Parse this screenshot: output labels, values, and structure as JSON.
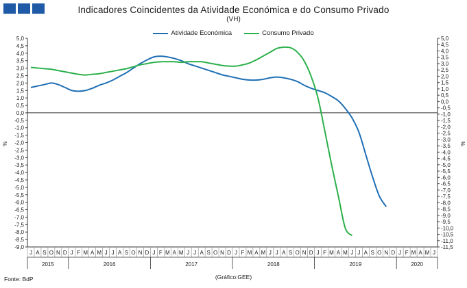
{
  "header": {
    "title": "Indicadores Coincidentes da Atividade Económica e do Consumo Privado",
    "subtitle": "(VH)"
  },
  "footer": {
    "source": "Fonte: BdP",
    "credit": "(Gráfico:GEE)"
  },
  "chart_data": {
    "type": "line",
    "title": "Indicadores Coincidentes da Atividade Económica e do Consumo Privado",
    "subtitle": "(VH)",
    "ylabel_left": "%",
    "ylabel_right": "%",
    "ylim_left": [
      -9.0,
      5.0
    ],
    "ylim_right": [
      -11.5,
      5.0
    ],
    "yticks_left": [
      "5,0",
      "4,5",
      "4,0",
      "3,5",
      "3,0",
      "2,5",
      "2,0",
      "1,5",
      "1,0",
      "0,5",
      "0,0",
      "-0,5",
      "-1,0",
      "-1,5",
      "-2,0",
      "-2,5",
      "-3,0",
      "-3,5",
      "-4,0",
      "-4,5",
      "-5,0",
      "-5,5",
      "-6,0",
      "-6,5",
      "-7,0",
      "-7,5",
      "-8,0",
      "-8,5",
      "-9,0"
    ],
    "yticks_right": [
      "5,0",
      "4,5",
      "4,0",
      "3,5",
      "3,0",
      "2,5",
      "2,0",
      "1,5",
      "1,0",
      "0,5",
      "0,0",
      "-0,5",
      "-1,0",
      "-1,5",
      "-2,0",
      "-2,5",
      "-3,0",
      "-3,5",
      "-4,0",
      "-4,5",
      "-5,0",
      "-5,5",
      "-6,0",
      "-6,5",
      "-7,0",
      "-7,5",
      "-8,0",
      "-8,5",
      "-9,0",
      "-9,5",
      "-10,0",
      "-10,5",
      "-11,0",
      "-11,5"
    ],
    "x_months": [
      "J",
      "A",
      "S",
      "O",
      "N",
      "D",
      "J",
      "F",
      "M",
      "A",
      "M",
      "J",
      "J",
      "A",
      "S",
      "O",
      "N",
      "D",
      "J",
      "F",
      "M",
      "A",
      "M",
      "J",
      "J",
      "A",
      "S",
      "O",
      "N",
      "D",
      "J",
      "F",
      "M",
      "A",
      "M",
      "J",
      "J",
      "A",
      "S",
      "O",
      "N",
      "D",
      "J",
      "F",
      "M",
      "A",
      "M",
      "J",
      "J",
      "A",
      "S",
      "O",
      "N",
      "D",
      "J",
      "F",
      "M",
      "A",
      "M",
      "J"
    ],
    "x_years": [
      {
        "label": "2015",
        "start": 0,
        "end": 5
      },
      {
        "label": "2016",
        "start": 6,
        "end": 17
      },
      {
        "label": "2017",
        "start": 18,
        "end": 29
      },
      {
        "label": "2018",
        "start": 30,
        "end": 41
      },
      {
        "label": "2019",
        "start": 42,
        "end": 53
      },
      {
        "label": "2020",
        "start": 54,
        "end": 59
      }
    ],
    "legend_position": "top-center",
    "series": [
      {
        "name": "Atividade Económica",
        "color": "#1f6fb5",
        "axis": "left",
        "values": [
          1.7,
          1.8,
          1.9,
          2.0,
          1.9,
          1.7,
          1.5,
          1.45,
          1.5,
          1.65,
          1.85,
          2.0,
          2.2,
          2.45,
          2.7,
          3.0,
          3.3,
          3.55,
          3.75,
          3.8,
          3.75,
          3.65,
          3.5,
          3.3,
          3.15,
          3.0,
          2.85,
          2.7,
          2.55,
          2.45,
          2.35,
          2.25,
          2.2,
          2.2,
          2.25,
          2.35,
          2.4,
          2.35,
          2.25,
          2.1,
          1.85,
          1.65,
          1.5,
          1.35,
          1.1,
          0.8,
          0.3,
          -0.35,
          -1.3,
          -2.8,
          -4.3,
          -5.6,
          -6.3,
          null,
          null,
          null,
          null,
          null,
          null,
          null
        ]
      },
      {
        "name": "Consumo Privado",
        "color": "#2ab04a",
        "axis": "right",
        "values": [
          2.7,
          2.65,
          2.6,
          2.55,
          2.45,
          2.35,
          2.25,
          2.15,
          2.1,
          2.15,
          2.2,
          2.3,
          2.4,
          2.5,
          2.6,
          2.75,
          2.9,
          3.0,
          3.1,
          3.15,
          3.15,
          3.15,
          3.1,
          3.15,
          3.15,
          3.15,
          3.05,
          2.95,
          2.85,
          2.8,
          2.8,
          2.9,
          3.05,
          3.3,
          3.6,
          3.9,
          4.2,
          4.3,
          4.25,
          3.9,
          3.2,
          2.0,
          0.3,
          -2.3,
          -5.0,
          -7.5,
          -10.0,
          -10.6,
          null,
          null,
          null,
          null,
          null,
          null,
          null,
          null,
          null,
          null,
          null,
          null
        ]
      }
    ]
  }
}
